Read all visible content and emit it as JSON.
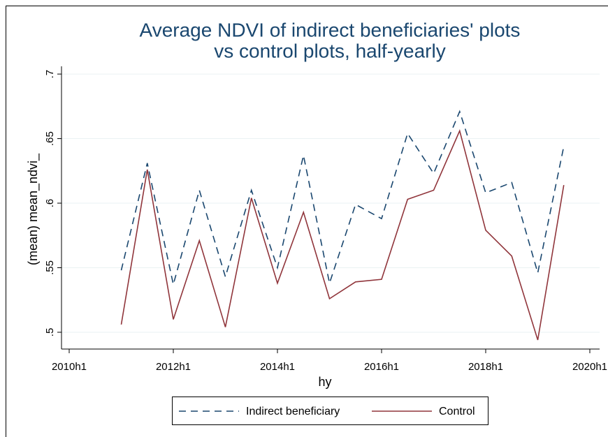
{
  "chart_data": {
    "type": "line",
    "title": [
      "Average NDVI of indirect beneficiaries' plots",
      "vs control plots, half-yearly"
    ],
    "x_label": "hy",
    "y_label": "(mean) mean_ndvi_",
    "x": [
      "2011h1",
      "2011h2",
      "2012h1",
      "2012h2",
      "2013h1",
      "2013h2",
      "2014h1",
      "2014h2",
      "2015h1",
      "2015h2",
      "2016h1",
      "2016h2",
      "2017h1",
      "2017h2",
      "2018h1",
      "2018h2",
      "2019h1",
      "2019h2"
    ],
    "series": [
      {
        "name": "Indirect beneficiary",
        "color": "#1a476f",
        "dashed": true,
        "values": [
          0.548,
          0.631,
          0.537,
          0.61,
          0.543,
          0.61,
          0.55,
          0.637,
          0.538,
          0.599,
          0.588,
          0.654,
          0.623,
          0.671,
          0.608,
          0.616,
          0.546,
          0.644
        ]
      },
      {
        "name": "Control",
        "color": "#90353b",
        "dashed": false,
        "values": [
          0.506,
          0.626,
          0.51,
          0.571,
          0.504,
          0.604,
          0.538,
          0.593,
          0.526,
          0.539,
          0.541,
          0.603,
          0.61,
          0.656,
          0.579,
          0.559,
          0.494,
          0.614
        ]
      }
    ],
    "xticks": [
      "2010h1",
      "2012h1",
      "2014h1",
      "2016h1",
      "2018h1",
      "2020h1"
    ],
    "ylim": [
      0.487,
      0.706
    ],
    "yticks": [
      {
        "value": 0.5,
        "label": ".5"
      },
      {
        "value": 0.55,
        "label": ".55"
      },
      {
        "value": 0.6,
        "label": ".6"
      },
      {
        "value": 0.65,
        "label": ".65"
      },
      {
        "value": 0.7,
        "label": ".7"
      }
    ],
    "grid": true
  }
}
